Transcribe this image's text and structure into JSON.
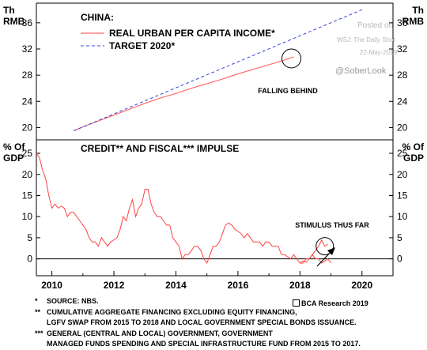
{
  "chart_data": [
    {
      "type": "line",
      "title": "CHINA:",
      "ylabel": "Th RMB",
      "ylim": [
        18,
        39
      ],
      "yticks": [
        20,
        24,
        28,
        32,
        36
      ],
      "axis_label_top": "Th",
      "axis_label_bottom": "RMB",
      "annotation": "FALLING BEHIND",
      "series": [
        {
          "name": "REAL URBAN PER CAPITA INCOME*",
          "color": "#ff6b6b",
          "x": [
            2010.7,
            2011.0,
            2011.5,
            2012.0,
            2012.5,
            2013.0,
            2013.5,
            2014.0,
            2014.5,
            2015.0,
            2015.5,
            2016.0,
            2016.5,
            2017.0,
            2017.5,
            2017.8
          ],
          "y": [
            19.5,
            20.1,
            21.0,
            21.9,
            22.8,
            23.7,
            24.5,
            25.2,
            26.0,
            26.7,
            27.4,
            28.2,
            28.9,
            29.6,
            30.3,
            30.8
          ]
        },
        {
          "name": "TARGET 2020*",
          "color": "#3344dd",
          "style": "dashed",
          "x": [
            2010.7,
            2020.0
          ],
          "y": [
            19.5,
            38.0
          ]
        }
      ]
    },
    {
      "type": "line",
      "title": "CREDIT** AND FISCAL*** IMPULSE",
      "ylabel": "% Of GDP",
      "ylim": [
        -4,
        28
      ],
      "yticks": [
        0,
        5,
        10,
        15,
        20,
        25
      ],
      "axis_label_top": "% Of",
      "axis_label_bottom": "GDP",
      "annotation": "STIMULUS THUS FAR",
      "x_ticks": [
        "2010",
        "2012",
        "2014",
        "2016",
        "2018",
        "2020"
      ],
      "xlim": [
        2009.5,
        2021.0
      ],
      "series": [
        {
          "name": "",
          "color": "#ff4444",
          "x": [
            2009.5,
            2009.6,
            2009.7,
            2009.8,
            2009.9,
            2010.0,
            2010.1,
            2010.2,
            2010.3,
            2010.4,
            2010.5,
            2010.6,
            2010.7,
            2010.8,
            2010.9,
            2011.0,
            2011.1,
            2011.2,
            2011.3,
            2011.4,
            2011.5,
            2011.6,
            2011.7,
            2011.8,
            2011.9,
            2012.0,
            2012.1,
            2012.2,
            2012.3,
            2012.4,
            2012.5,
            2012.6,
            2012.7,
            2012.8,
            2012.9,
            2013.0,
            2013.1,
            2013.2,
            2013.3,
            2013.4,
            2013.5,
            2013.6,
            2013.7,
            2013.8,
            2013.9,
            2014.0,
            2014.1,
            2014.2,
            2014.3,
            2014.4,
            2014.5,
            2014.6,
            2014.7,
            2014.8,
            2014.9,
            2015.0,
            2015.1,
            2015.2,
            2015.3,
            2015.4,
            2015.5,
            2015.6,
            2015.7,
            2015.8,
            2015.9,
            2016.0,
            2016.1,
            2016.2,
            2016.3,
            2016.4,
            2016.5,
            2016.6,
            2016.7,
            2016.8,
            2016.9,
            2017.0,
            2017.1,
            2017.2,
            2017.3,
            2017.4,
            2017.5,
            2017.6,
            2017.7,
            2017.8,
            2017.9,
            2018.0,
            2018.1,
            2018.2,
            2018.3,
            2018.4,
            2018.5,
            2018.6,
            2018.7,
            2018.8,
            2018.9,
            2019.0
          ],
          "y": [
            25,
            24,
            21,
            19,
            15,
            12,
            13,
            12,
            12.5,
            12,
            10,
            11,
            11,
            10,
            9,
            8,
            7,
            5,
            4,
            4,
            3,
            5,
            4,
            3,
            4,
            4.5,
            5,
            7,
            10,
            9,
            12,
            14,
            10,
            12,
            13,
            16.5,
            16.5,
            13,
            11,
            10,
            10,
            9,
            8,
            8,
            5,
            4,
            3,
            0,
            1,
            1,
            2,
            3,
            3,
            2,
            0,
            -1,
            1,
            3,
            3,
            4,
            6,
            8,
            8.5,
            8,
            7,
            6.5,
            6,
            5,
            6,
            5,
            4,
            4,
            4,
            3,
            4,
            4,
            3,
            3,
            3,
            1,
            1,
            0.5,
            0,
            1,
            0,
            -1,
            -1,
            0,
            0,
            1,
            0,
            0,
            -1,
            -0.5,
            0,
            -1
          ]
        },
        {
          "name": "",
          "color": "#ff4444",
          "x": [
            2018.0,
            2018.1,
            2018.2,
            2018.3,
            2018.4,
            2018.5,
            2018.6,
            2018.7,
            2018.8,
            2018.9
          ],
          "y": [
            -1,
            -0.5,
            -0.8,
            0,
            1,
            2,
            3,
            4.5,
            3,
            3.5
          ]
        }
      ]
    }
  ],
  "notes": [
    {
      "mark": "*",
      "text": "SOURCE: NBS."
    },
    {
      "mark": "**",
      "text": "CUMULATIVE AGGREGATE FINANCING EXCLUDING EQUITY FINANCING,"
    },
    {
      "mark": "",
      "text": "LGFV SWAP FROM 2015 TO 2018 AND LOCAL GOVERNMENT SPECIAL BONDS ISSUANCE."
    },
    {
      "mark": "***",
      "text": "GENERAL (CENTRAL AND LOCAL) GOVERNMENT, GOVERNMENT"
    },
    {
      "mark": "",
      "text": "MANAGED FUNDS SPENDING AND SPECIAL INFRASTRUCTURE FUND FROM 2015 TO 2017."
    }
  ],
  "credit": "BCA Research 2019",
  "watermark": {
    "posted": "Posted on",
    "source": "WSJ: The Daily Shot",
    "date": "22-May-2019",
    "handle": "@SoberLook"
  }
}
